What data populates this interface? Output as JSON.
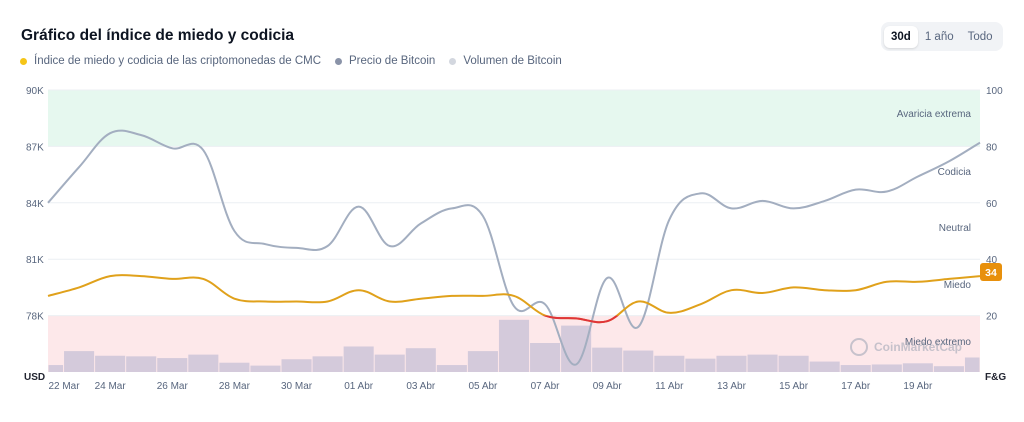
{
  "title": "Gráfico del índice de miedo y codicia",
  "range_tabs": [
    {
      "label": "30d",
      "active": true
    },
    {
      "label": "1 año",
      "active": false
    },
    {
      "label": "Todo",
      "active": false
    }
  ],
  "legend": [
    {
      "label": "Índice de miedo y codicia de las criptomonedas de CMC",
      "color": "#f5c518"
    },
    {
      "label": "Precio de Bitcoin",
      "color": "#8a93a8"
    },
    {
      "label": "Volumen de Bitcoin",
      "color": "#d3d7df"
    }
  ],
  "colors": {
    "fg_line": "#e0a11b",
    "fg_fear_segment": "#e0343a",
    "price_line": "#a3aec0",
    "volume_bar": "#cdc4d8",
    "greed_zone": "#e6f8ef",
    "fear_zone": "#fde8ea",
    "badge": "#e8900c"
  },
  "watermark": "CoinMarketCap",
  "current_badge": "34",
  "chart_data": {
    "type": "line",
    "x_unit": "days",
    "x_tick_labels": [
      "22 Mar",
      "24 Mar",
      "26 Mar",
      "28 Mar",
      "30 Mar",
      "01 Abr",
      "03 Abr",
      "05 Abr",
      "07 Abr",
      "09 Abr",
      "11 Abr",
      "13 Abr",
      "15 Abr",
      "17 Abr",
      "19 Abr"
    ],
    "left_axis": {
      "unit_label": "USD",
      "ticks": [
        "90K",
        "87K",
        "84K",
        "81K",
        "78K"
      ],
      "ylim": [
        75000,
        90000
      ]
    },
    "right_axis": {
      "unit_label": "F&G",
      "ticks": [
        "100",
        "80",
        "60",
        "40",
        "20"
      ],
      "ylim": [
        0,
        100
      ]
    },
    "zones": [
      {
        "label": "Avaricia extrema",
        "range": [
          80,
          100
        ]
      },
      {
        "label": "Codicia",
        "range": [
          60,
          80
        ]
      },
      {
        "label": "Neutral",
        "range": [
          40,
          60
        ]
      },
      {
        "label": "Miedo",
        "range": [
          20,
          40
        ]
      },
      {
        "label": "Miedo extremo",
        "range": [
          0,
          20
        ]
      }
    ],
    "series": [
      {
        "name": "Índice de miedo y codicia de las criptomonedas de CMC",
        "axis": "right",
        "x": [
          0,
          1,
          2,
          3,
          4,
          5,
          6,
          7,
          8,
          9,
          10,
          11,
          12,
          13,
          14,
          15,
          16,
          17,
          18,
          19,
          20,
          21,
          22,
          23,
          24,
          25,
          26,
          27,
          28,
          29,
          30
        ],
        "values": [
          27,
          30,
          34,
          34,
          33,
          33,
          26,
          25,
          25,
          25,
          29,
          25,
          26,
          27,
          27,
          27,
          20,
          19,
          18,
          25,
          21,
          24,
          29,
          28,
          30,
          29,
          29,
          32,
          32,
          33,
          34
        ]
      },
      {
        "name": "Precio de Bitcoin",
        "axis": "left",
        "x": [
          0,
          1,
          2,
          3,
          4,
          5,
          6,
          7,
          8,
          9,
          10,
          11,
          12,
          13,
          14,
          15,
          16,
          17,
          18,
          19,
          20,
          21,
          22,
          23,
          24,
          25,
          26,
          27,
          28,
          29,
          30
        ],
        "values": [
          84000,
          85900,
          87700,
          87600,
          86900,
          86800,
          82500,
          81800,
          81600,
          81700,
          83800,
          81700,
          82900,
          83700,
          83300,
          78500,
          78600,
          75400,
          80000,
          77400,
          83100,
          84500,
          83700,
          84100,
          83700,
          84100,
          84700,
          84600,
          85400,
          86200,
          87200
        ]
      },
      {
        "name": "Volumen de Bitcoin",
        "type": "bar",
        "x": [
          0,
          1,
          2,
          3,
          4,
          5,
          6,
          7,
          8,
          9,
          10,
          11,
          12,
          13,
          14,
          15,
          16,
          17,
          18,
          19,
          20,
          21,
          22,
          23,
          24,
          25,
          26,
          27,
          28,
          29,
          30
        ],
        "values": [
          0.12,
          0.36,
          0.28,
          0.27,
          0.24,
          0.3,
          0.16,
          0.11,
          0.22,
          0.27,
          0.44,
          0.3,
          0.41,
          0.12,
          0.36,
          0.9,
          0.5,
          0.8,
          0.42,
          0.37,
          0.28,
          0.23,
          0.28,
          0.3,
          0.28,
          0.18,
          0.12,
          0.13,
          0.15,
          0.1,
          0.25
        ]
      }
    ]
  }
}
